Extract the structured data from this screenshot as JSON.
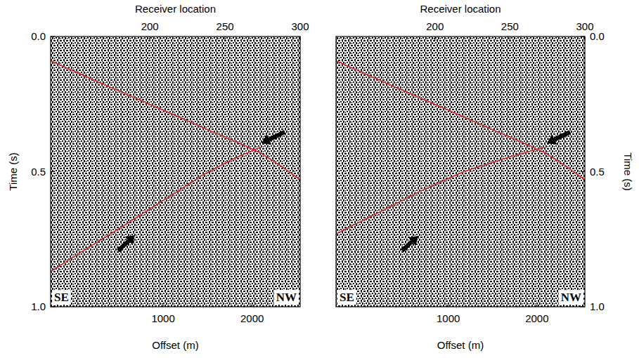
{
  "chart_data": [
    {
      "type": "line",
      "x_label": "Offset (m)",
      "x2_label": "Receiver location",
      "y_label": "Time (s)",
      "xlim": [
        -265,
        2540
      ],
      "xticks": [
        1000,
        2000
      ],
      "x2lim": [
        134,
        300
      ],
      "x2ticks": [
        200,
        250,
        300
      ],
      "ylim": [
        1.0,
        0.0
      ],
      "yticks": [
        {
          "value": 0,
          "label": "0.0"
        },
        {
          "value": 0.5,
          "label": "0.5"
        },
        {
          "value": 1,
          "label": "1.0"
        }
      ],
      "annotations": [
        "SE",
        "NW"
      ],
      "series": [
        {
          "color": "#e8262b",
          "x": [
            -265,
            352,
            984,
            1537,
            1854,
            2091,
            2328,
            2540
          ],
          "values": [
            0.09,
            0.18,
            0.27,
            0.35,
            0.395,
            0.43,
            0.48,
            0.53
          ]
        },
        {
          "color": "#e8262b",
          "x": [
            -265,
            114,
            510,
            984,
            1458,
            1774,
            2091
          ],
          "values": [
            0.87,
            0.79,
            0.71,
            0.61,
            0.51,
            0.455,
            0.41
          ]
        }
      ]
    },
    {
      "type": "line",
      "x_label": "Offset (m)",
      "x2_label": "Receiver location",
      "y_label": "Time (s)",
      "xlim": [
        -265,
        2540
      ],
      "xticks": [
        1000,
        2000
      ],
      "x2lim": [
        134,
        300
      ],
      "x2ticks": [
        200,
        250,
        300
      ],
      "ylim": [
        1.0,
        0.0
      ],
      "yticks": [
        {
          "value": 0,
          "label": "0.0"
        },
        {
          "value": 0.5,
          "label": "0.5"
        },
        {
          "value": 1,
          "label": "1.0"
        }
      ],
      "annotations": [
        "SE",
        "NW"
      ],
      "series": [
        {
          "color": "#e8262b",
          "x": [
            -265,
            352,
            984,
            1537,
            1854,
            2091,
            2328,
            2540
          ],
          "values": [
            0.09,
            0.18,
            0.27,
            0.35,
            0.395,
            0.43,
            0.48,
            0.53
          ]
        },
        {
          "color": "#e8262b",
          "x": [
            -265,
            225,
            699,
            1174,
            1648,
            2083
          ],
          "values": [
            0.73,
            0.65,
            0.57,
            0.5,
            0.45,
            0.41
          ]
        }
      ]
    }
  ]
}
